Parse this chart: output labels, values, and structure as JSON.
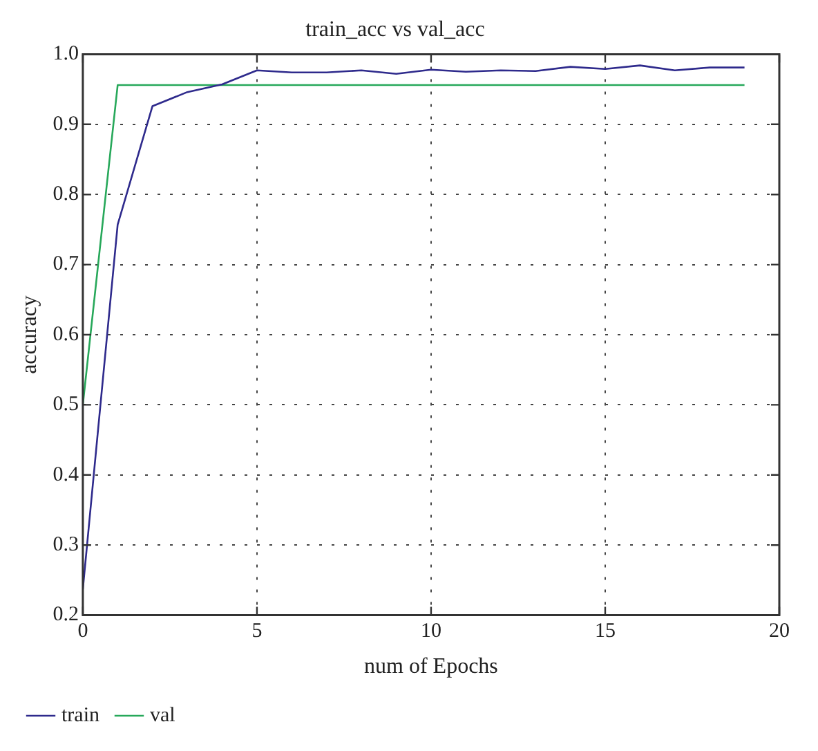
{
  "chart_data": {
    "type": "line",
    "title": "train_acc vs val_acc",
    "xlabel": "num of Epochs",
    "ylabel": "accuracy",
    "x": [
      0,
      1,
      2,
      3,
      4,
      5,
      6,
      7,
      8,
      9,
      10,
      11,
      12,
      13,
      14,
      15,
      16,
      17,
      18,
      19
    ],
    "series": [
      {
        "name": "train",
        "color": "#2e2a8c",
        "values": [
          0.237,
          0.757,
          0.926,
          0.946,
          0.957,
          0.977,
          0.974,
          0.974,
          0.977,
          0.972,
          0.978,
          0.975,
          0.977,
          0.976,
          0.982,
          0.979,
          0.984,
          0.977,
          0.981,
          0.981
        ]
      },
      {
        "name": "val",
        "color": "#27a85a",
        "values": [
          0.5,
          0.956,
          0.956,
          0.956,
          0.956,
          0.956,
          0.956,
          0.956,
          0.956,
          0.956,
          0.956,
          0.956,
          0.956,
          0.956,
          0.956,
          0.956,
          0.956,
          0.956,
          0.956,
          0.956
        ]
      }
    ],
    "xlim": [
      0,
      20
    ],
    "xticks": [
      0,
      5,
      10,
      15,
      20
    ],
    "ylim": [
      0.2,
      1.0
    ],
    "yticks": [
      0.2,
      0.3,
      0.4,
      0.5,
      0.6,
      0.7,
      0.8,
      0.9,
      {
        "value": 1.0,
        "label": "1.0"
      }
    ],
    "grid": true,
    "legend": "bottom left",
    "marker": "none",
    "line_style": "solid"
  }
}
